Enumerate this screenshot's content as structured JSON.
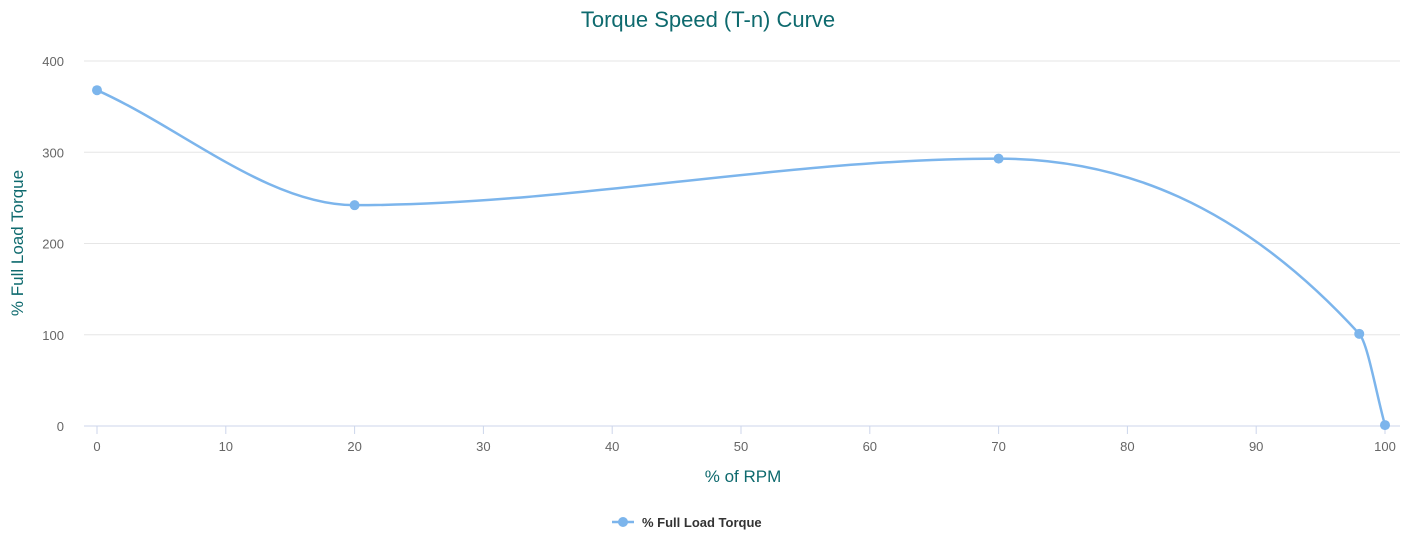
{
  "chart_data": {
    "type": "line",
    "title": "Torque Speed (T-n) Curve",
    "xlabel": "% of RPM",
    "ylabel": "% Full Load Torque",
    "xlim": [
      0,
      100
    ],
    "ylim": [
      0,
      400
    ],
    "x_ticks": [
      "0",
      "10",
      "20",
      "30",
      "40",
      "50",
      "60",
      "70",
      "80",
      "90",
      "100"
    ],
    "y_ticks": [
      "0",
      "100",
      "200",
      "300",
      "400"
    ],
    "grid": true,
    "legend_position": "bottom-center",
    "series": [
      {
        "name": "% Full Load Torque",
        "color": "#7cb5ec",
        "smooth": true,
        "points": [
          {
            "x": 0,
            "y": 368
          },
          {
            "x": 20,
            "y": 242
          },
          {
            "x": 70,
            "y": 293
          },
          {
            "x": 98,
            "y": 101
          },
          {
            "x": 100,
            "y": 1
          }
        ]
      }
    ]
  }
}
